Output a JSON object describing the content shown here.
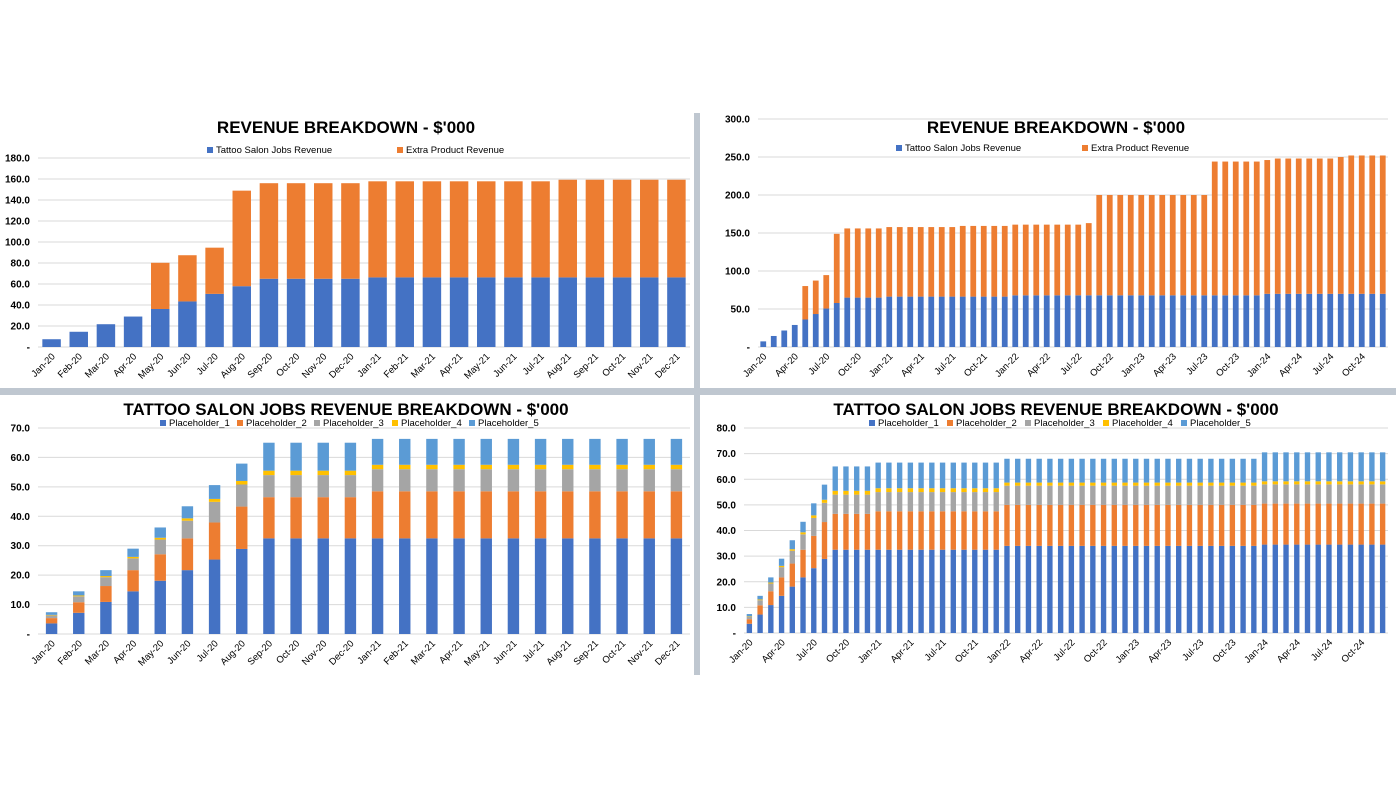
{
  "colors": {
    "tattoo": "#4472C4",
    "extra": "#ED7D31",
    "p1": "#4472C4",
    "p2": "#ED7D31",
    "p3": "#A5A5A5",
    "p4": "#FFC000",
    "p5": "#5B9BD5"
  },
  "chart_data": [
    {
      "id": "revenue-monthly",
      "type": "bar",
      "stacked": true,
      "title": "REVENUE BREAKDOWN - $'000",
      "legend_position": "top",
      "ylim": [
        0,
        180
      ],
      "yticks": [
        0,
        20,
        40,
        60,
        80,
        100,
        120,
        140,
        160,
        180
      ],
      "ytick_labels": [
        "-",
        "20.0",
        "40.0",
        "60.0",
        "80.0",
        "100.0",
        "120.0",
        "140.0",
        "160.0",
        "180.0"
      ],
      "categories": [
        "Jan-20",
        "Feb-20",
        "Mar-20",
        "Apr-20",
        "May-20",
        "Jun-20",
        "Jul-20",
        "Aug-20",
        "Sep-20",
        "Oct-20",
        "Nov-20",
        "Dec-20",
        "Jan-21",
        "Feb-21",
        "Mar-21",
        "Apr-21",
        "May-21",
        "Jun-21",
        "Jul-21",
        "Aug-21",
        "Sep-21",
        "Oct-21",
        "Nov-21",
        "Dec-21"
      ],
      "series": [
        {
          "name": "Tattoo Salon Jobs Revenue",
          "color_key": "tattoo",
          "values": [
            7.4,
            14.5,
            21.7,
            29.0,
            36.2,
            43.4,
            50.6,
            57.9,
            65.0,
            65.0,
            65.0,
            65.0,
            66.3,
            66.3,
            66.3,
            66.3,
            66.3,
            66.3,
            66.3,
            66.3,
            66.3,
            66.3,
            66.3,
            66.3
          ]
        },
        {
          "name": "Extra Product Revenue",
          "color_key": "extra",
          "values": [
            0,
            0,
            0,
            0,
            44.0,
            44.0,
            44.0,
            91.0,
            91.0,
            91.0,
            91.0,
            91.0,
            91.5,
            91.5,
            91.5,
            91.5,
            91.5,
            91.5,
            91.5,
            93.0,
            93.0,
            93.0,
            93.0,
            93.0
          ]
        }
      ]
    },
    {
      "id": "revenue-5yr",
      "type": "bar",
      "stacked": true,
      "title": "REVENUE BREAKDOWN - $'000",
      "legend_position": "top",
      "ylim": [
        0,
        300
      ],
      "yticks": [
        0,
        50,
        100,
        150,
        200,
        250,
        300
      ],
      "ytick_labels": [
        "-",
        "50.0",
        "100.0",
        "150.0",
        "200.0",
        "250.0",
        "300.0"
      ],
      "categories": [
        "Jan-20",
        "Feb-20",
        "Mar-20",
        "Apr-20",
        "May-20",
        "Jun-20",
        "Jul-20",
        "Aug-20",
        "Sep-20",
        "Oct-20",
        "Nov-20",
        "Dec-20",
        "Jan-21",
        "Feb-21",
        "Mar-21",
        "Apr-21",
        "May-21",
        "Jun-21",
        "Jul-21",
        "Aug-21",
        "Sep-21",
        "Oct-21",
        "Nov-21",
        "Dec-21",
        "Jan-22",
        "Feb-22",
        "Mar-22",
        "Apr-22",
        "May-22",
        "Jun-22",
        "Jul-22",
        "Aug-22",
        "Sep-22",
        "Oct-22",
        "Nov-22",
        "Dec-22",
        "Jan-23",
        "Feb-23",
        "Mar-23",
        "Apr-23",
        "May-23",
        "Jun-23",
        "Jul-23",
        "Aug-23",
        "Sep-23",
        "Oct-23",
        "Nov-23",
        "Dec-23",
        "Jan-24",
        "Feb-24",
        "Mar-24",
        "Apr-24",
        "May-24",
        "Jun-24",
        "Jul-24",
        "Aug-24",
        "Sep-24",
        "Oct-24",
        "Nov-24",
        "Dec-24"
      ],
      "tick_labels": [
        "Jan-20",
        "Apr-20",
        "Jul-20",
        "Oct-20",
        "Jan-21",
        "Apr-21",
        "Jul-21",
        "Oct-21",
        "Jan-22",
        "Apr-22",
        "Jul-22",
        "Oct-22",
        "Jan-23",
        "Apr-23",
        "Jul-23",
        "Oct-23",
        "Jan-24",
        "Apr-24",
        "Jul-24",
        "Oct-24"
      ],
      "series": [
        {
          "name": "Tattoo Salon Jobs Revenue",
          "color_key": "tattoo",
          "values": [
            7.4,
            14.5,
            21.7,
            29.0,
            36.2,
            43.4,
            50.6,
            57.9,
            65.0,
            65.0,
            65.0,
            65.0,
            66.3,
            66.3,
            66.3,
            66.3,
            66.3,
            66.3,
            66.3,
            66.3,
            66.3,
            66.3,
            66.3,
            66.3,
            68.0,
            68.0,
            68.0,
            68.0,
            68.0,
            68.0,
            68.0,
            68.0,
            68.0,
            68.0,
            68.0,
            68.0,
            68.0,
            68.0,
            68.0,
            68.0,
            68.0,
            68.0,
            68.0,
            68.0,
            68.0,
            68.0,
            68.0,
            68.0,
            70.0,
            70.0,
            70.0,
            70.0,
            70.0,
            70.0,
            70.0,
            70.0,
            70.0,
            70.0,
            70.0,
            70.0
          ]
        },
        {
          "name": "Extra Product Revenue",
          "color_key": "extra",
          "values": [
            0,
            0,
            0,
            0,
            44.0,
            44.0,
            44.0,
            91.0,
            91.0,
            91.0,
            91.0,
            91.0,
            91.5,
            91.5,
            91.5,
            91.5,
            91.5,
            91.5,
            91.5,
            93.0,
            93.0,
            93.0,
            93.0,
            93.0,
            93.0,
            93.0,
            93.0,
            93.0,
            93.0,
            93.0,
            93.0,
            95.0,
            132.0,
            132.0,
            132.0,
            132.0,
            132.0,
            132.0,
            132.0,
            132.0,
            132.0,
            132.0,
            132.0,
            176.0,
            176.0,
            176.0,
            176.0,
            176.0,
            176.0,
            178.0,
            178.0,
            178.0,
            178.0,
            178.0,
            178.0,
            180.0,
            182.0,
            182.0,
            182.0,
            182.0
          ]
        }
      ]
    },
    {
      "id": "tattoo-monthly",
      "type": "bar",
      "stacked": true,
      "title": "TATTOO SALON JOBS REVENUE BREAKDOWN - $'000",
      "legend_position": "top",
      "ylim": [
        0,
        70
      ],
      "yticks": [
        0,
        10,
        20,
        30,
        40,
        50,
        60,
        70
      ],
      "ytick_labels": [
        "-",
        "10.0",
        "20.0",
        "30.0",
        "40.0",
        "50.0",
        "60.0",
        "70.0"
      ],
      "categories": [
        "Jan-20",
        "Feb-20",
        "Mar-20",
        "Apr-20",
        "May-20",
        "Jun-20",
        "Jul-20",
        "Aug-20",
        "Sep-20",
        "Oct-20",
        "Nov-20",
        "Dec-20",
        "Jan-21",
        "Feb-21",
        "Mar-21",
        "Apr-21",
        "May-21",
        "Jun-21",
        "Jul-21",
        "Aug-21",
        "Sep-21",
        "Oct-21",
        "Nov-21",
        "Dec-21"
      ],
      "series": [
        {
          "name": "Placeholder_1",
          "color_key": "p1",
          "values": [
            3.6,
            7.2,
            10.9,
            14.5,
            18.1,
            21.7,
            25.3,
            28.9,
            32.5,
            32.5,
            32.5,
            32.5,
            32.5,
            32.5,
            32.5,
            32.5,
            32.5,
            32.5,
            32.5,
            32.5,
            32.5,
            32.5,
            32.5,
            32.5
          ]
        },
        {
          "name": "Placeholder_2",
          "color_key": "p2",
          "values": [
            1.8,
            3.6,
            5.4,
            7.2,
            9.0,
            10.8,
            12.6,
            14.4,
            14.0,
            14.0,
            14.0,
            14.0,
            16.0,
            16.0,
            16.0,
            16.0,
            16.0,
            16.0,
            16.0,
            16.0,
            16.0,
            16.0,
            16.0,
            16.0
          ]
        },
        {
          "name": "Placeholder_3",
          "color_key": "p3",
          "values": [
            1.0,
            2.0,
            3.0,
            4.0,
            5.0,
            6.0,
            7.0,
            7.5,
            7.5,
            7.5,
            7.5,
            7.5,
            7.5,
            7.5,
            7.5,
            7.5,
            7.5,
            7.5,
            7.5,
            7.5,
            7.5,
            7.5,
            7.5,
            7.5
          ]
        },
        {
          "name": "Placeholder_4",
          "color_key": "p4",
          "values": [
            0.1,
            0.3,
            0.4,
            0.5,
            0.6,
            0.8,
            1.0,
            1.2,
            1.5,
            1.5,
            1.5,
            1.5,
            1.5,
            1.5,
            1.5,
            1.5,
            1.5,
            1.5,
            1.5,
            1.5,
            1.5,
            1.5,
            1.5,
            1.5
          ]
        },
        {
          "name": "Placeholder_5",
          "color_key": "p5",
          "values": [
            0.9,
            1.4,
            2.0,
            2.8,
            3.5,
            4.1,
            4.7,
            5.9,
            9.5,
            9.5,
            9.5,
            9.5,
            8.8,
            8.8,
            8.8,
            8.8,
            8.8,
            8.8,
            8.8,
            8.8,
            8.8,
            8.8,
            8.8,
            8.8
          ]
        }
      ]
    },
    {
      "id": "tattoo-5yr",
      "type": "bar",
      "stacked": true,
      "title": "TATTOO SALON JOBS REVENUE BREAKDOWN - $'000",
      "legend_position": "top",
      "ylim": [
        0,
        80
      ],
      "yticks": [
        0,
        10,
        20,
        30,
        40,
        50,
        60,
        70,
        80
      ],
      "ytick_labels": [
        "-",
        "10.0",
        "20.0",
        "30.0",
        "40.0",
        "50.0",
        "60.0",
        "70.0",
        "80.0"
      ],
      "categories": [
        "Jan-20",
        "Feb-20",
        "Mar-20",
        "Apr-20",
        "May-20",
        "Jun-20",
        "Jul-20",
        "Aug-20",
        "Sep-20",
        "Oct-20",
        "Nov-20",
        "Dec-20",
        "Jan-21",
        "Feb-21",
        "Mar-21",
        "Apr-21",
        "May-21",
        "Jun-21",
        "Jul-21",
        "Aug-21",
        "Sep-21",
        "Oct-21",
        "Nov-21",
        "Dec-21",
        "Jan-22",
        "Feb-22",
        "Mar-22",
        "Apr-22",
        "May-22",
        "Jun-22",
        "Jul-22",
        "Aug-22",
        "Sep-22",
        "Oct-22",
        "Nov-22",
        "Dec-22",
        "Jan-23",
        "Feb-23",
        "Mar-23",
        "Apr-23",
        "May-23",
        "Jun-23",
        "Jul-23",
        "Aug-23",
        "Sep-23",
        "Oct-23",
        "Nov-23",
        "Dec-23",
        "Jan-24",
        "Feb-24",
        "Mar-24",
        "Apr-24",
        "May-24",
        "Jun-24",
        "Jul-24",
        "Aug-24",
        "Sep-24",
        "Oct-24",
        "Nov-24",
        "Dec-24"
      ],
      "tick_labels": [
        "Jan-20",
        "Apr-20",
        "Jul-20",
        "Oct-20",
        "Jan-21",
        "Apr-21",
        "Jul-21",
        "Oct-21",
        "Jan-22",
        "Apr-22",
        "Jul-22",
        "Oct-22",
        "Jan-23",
        "Apr-23",
        "Jul-23",
        "Oct-23",
        "Jan-24",
        "Apr-24",
        "Jul-24",
        "Oct-24"
      ],
      "series": [
        {
          "name": "Placeholder_1",
          "color_key": "p1",
          "values": [
            3.6,
            7.2,
            10.9,
            14.5,
            18.1,
            21.7,
            25.3,
            28.9,
            32.5,
            32.5,
            32.5,
            32.5,
            32.5,
            32.5,
            32.5,
            32.5,
            32.5,
            32.5,
            32.5,
            32.5,
            32.5,
            32.5,
            32.5,
            32.5,
            34.0,
            34.0,
            34.0,
            34.0,
            34.0,
            34.0,
            34.0,
            34.0,
            34.0,
            34.0,
            34.0,
            34.0,
            34.0,
            34.0,
            34.0,
            34.0,
            34.0,
            34.0,
            34.0,
            34.0,
            34.0,
            34.0,
            34.0,
            34.0,
            34.5,
            34.5,
            34.5,
            34.5,
            34.5,
            34.5,
            34.5,
            34.5,
            34.5,
            34.5,
            34.5,
            34.5
          ]
        },
        {
          "name": "Placeholder_2",
          "color_key": "p2",
          "values": [
            1.8,
            3.6,
            5.4,
            7.2,
            9.0,
            10.8,
            12.6,
            14.4,
            14.0,
            14.0,
            14.0,
            14.0,
            15.0,
            15.0,
            15.0,
            15.0,
            15.0,
            15.0,
            15.0,
            15.0,
            15.0,
            15.0,
            15.0,
            15.0,
            16.0,
            16.0,
            16.0,
            16.0,
            16.0,
            16.0,
            16.0,
            16.0,
            16.0,
            16.0,
            16.0,
            16.0,
            16.0,
            16.0,
            16.0,
            16.0,
            16.0,
            16.0,
            16.0,
            16.0,
            16.0,
            16.0,
            16.0,
            16.0,
            16.0,
            16.0,
            16.0,
            16.0,
            16.0,
            16.0,
            16.0,
            16.0,
            16.0,
            16.0,
            16.0,
            16.0
          ]
        },
        {
          "name": "Placeholder_3",
          "color_key": "p3",
          "values": [
            1.0,
            2.0,
            3.0,
            4.0,
            5.0,
            6.0,
            7.0,
            7.5,
            7.5,
            7.5,
            7.5,
            7.5,
            7.5,
            7.5,
            7.5,
            7.5,
            7.5,
            7.5,
            7.5,
            7.5,
            7.5,
            7.5,
            7.5,
            7.5,
            7.5,
            7.5,
            7.5,
            7.5,
            7.5,
            7.5,
            7.5,
            7.5,
            7.5,
            7.5,
            7.5,
            7.5,
            7.5,
            7.5,
            7.5,
            7.5,
            7.5,
            7.5,
            7.5,
            7.5,
            7.5,
            7.5,
            7.5,
            7.5,
            7.5,
            7.5,
            7.5,
            7.5,
            7.5,
            7.5,
            7.5,
            7.5,
            7.5,
            7.5,
            7.5,
            7.5
          ]
        },
        {
          "name": "Placeholder_4",
          "color_key": "p4",
          "values": [
            0.1,
            0.3,
            0.4,
            0.5,
            0.6,
            0.8,
            1.0,
            1.2,
            1.5,
            1.5,
            1.5,
            1.5,
            1.5,
            1.5,
            1.5,
            1.5,
            1.5,
            1.5,
            1.5,
            1.5,
            1.5,
            1.5,
            1.5,
            1.5,
            1.2,
            1.2,
            1.2,
            1.2,
            1.2,
            1.2,
            1.2,
            1.2,
            1.2,
            1.2,
            1.2,
            1.2,
            1.2,
            1.2,
            1.2,
            1.2,
            1.2,
            1.2,
            1.2,
            1.2,
            1.2,
            1.2,
            1.2,
            1.2,
            1.2,
            1.2,
            1.2,
            1.2,
            1.2,
            1.2,
            1.2,
            1.2,
            1.2,
            1.2,
            1.2,
            1.2
          ]
        },
        {
          "name": "Placeholder_5",
          "color_key": "p5",
          "values": [
            0.9,
            1.4,
            2.0,
            2.8,
            3.5,
            4.1,
            4.7,
            5.9,
            9.5,
            9.5,
            9.5,
            9.5,
            10.0,
            10.0,
            10.0,
            10.0,
            10.0,
            10.0,
            10.0,
            10.0,
            10.0,
            10.0,
            10.0,
            10.0,
            9.3,
            9.3,
            9.3,
            9.3,
            9.3,
            9.3,
            9.3,
            9.3,
            9.3,
            9.3,
            9.3,
            9.3,
            9.3,
            9.3,
            9.3,
            9.3,
            9.3,
            9.3,
            9.3,
            9.3,
            9.3,
            9.3,
            9.3,
            9.3,
            11.3,
            11.3,
            11.3,
            11.3,
            11.3,
            11.3,
            11.3,
            11.3,
            11.3,
            11.3,
            11.3,
            11.3
          ]
        }
      ]
    }
  ]
}
